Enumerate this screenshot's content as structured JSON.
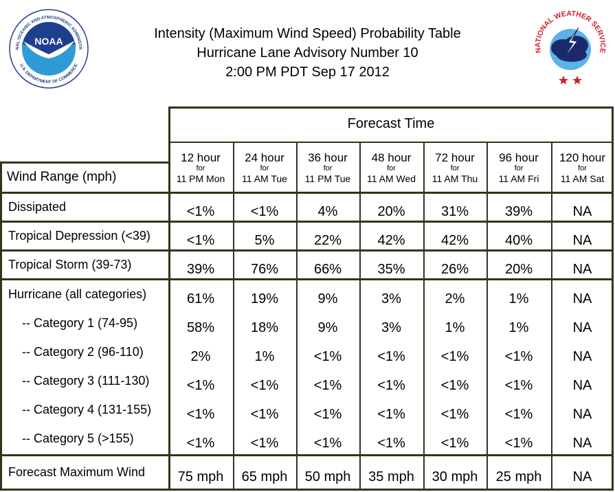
{
  "title": {
    "line1": "Intensity (Maximum Wind Speed) Probability Table",
    "line2": "Hurricane Lane Advisory Number 10",
    "line3": "2:00 PM PDT Sep 17 2012"
  },
  "logos": {
    "noaa_text": "NOAA",
    "noaa_ring": "NATIONAL OCEANIC AND ATMOSPHERIC ADMINISTRATION",
    "noaa_ring_bottom": "U.S. DEPARTMENT OF COMMERCE",
    "nws_ring": "NATIONAL WEATHER SERVICE"
  },
  "table": {
    "forecast_time_label": "Forecast Time",
    "wind_range_label": "Wind Range (mph)",
    "columns": [
      {
        "hours": "12 hour",
        "for": "for",
        "when": "11 PM Mon"
      },
      {
        "hours": "24 hour",
        "for": "for",
        "when": "11 AM Tue"
      },
      {
        "hours": "36 hour",
        "for": "for",
        "when": "11 PM Tue"
      },
      {
        "hours": "48 hour",
        "for": "for",
        "when": "11 AM Wed"
      },
      {
        "hours": "72 hour",
        "for": "for",
        "when": "11 AM Thu"
      },
      {
        "hours": "96 hour",
        "for": "for",
        "when": "11 AM Fri"
      },
      {
        "hours": "120 hour",
        "for": "for",
        "when": "11 AM Sat"
      }
    ],
    "rows": [
      {
        "label": "Dissipated",
        "values": [
          "<1%",
          "<1%",
          "4%",
          "20%",
          "31%",
          "39%",
          "NA"
        ]
      },
      {
        "label": "Tropical Depression (<39)",
        "values": [
          "<1%",
          "5%",
          "22%",
          "42%",
          "42%",
          "40%",
          "NA"
        ]
      },
      {
        "label": "Tropical Storm (39-73)",
        "values": [
          "39%",
          "76%",
          "66%",
          "35%",
          "26%",
          "20%",
          "NA"
        ]
      },
      {
        "label": "Hurricane (all categories)",
        "values": [
          "61%",
          "19%",
          "9%",
          "3%",
          "2%",
          "1%",
          "NA"
        ]
      },
      {
        "label": "-- Category 1 (74-95)",
        "values": [
          "58%",
          "18%",
          "9%",
          "3%",
          "1%",
          "1%",
          "NA"
        ]
      },
      {
        "label": "-- Category 2 (96-110)",
        "values": [
          "2%",
          "1%",
          "<1%",
          "<1%",
          "<1%",
          "<1%",
          "NA"
        ]
      },
      {
        "label": "-- Category 3 (111-130)",
        "values": [
          "<1%",
          "<1%",
          "<1%",
          "<1%",
          "<1%",
          "<1%",
          "NA"
        ]
      },
      {
        "label": "-- Category 4 (131-155)",
        "values": [
          "<1%",
          "<1%",
          "<1%",
          "<1%",
          "<1%",
          "<1%",
          "NA"
        ]
      },
      {
        "label": "-- Category 5 (>155)",
        "values": [
          "<1%",
          "<1%",
          "<1%",
          "<1%",
          "<1%",
          "<1%",
          "NA"
        ]
      },
      {
        "label": "Forecast Maximum Wind",
        "values": [
          "75 mph",
          "65 mph",
          "50 mph",
          "35 mph",
          "30 mph",
          "25 mph",
          "NA"
        ]
      }
    ]
  },
  "colors": {
    "border": "#33331a",
    "noaa_blue_dark": "#1d3f8c",
    "noaa_blue_light": "#2e9bd6",
    "nws_red": "#d0202a",
    "nws_navy": "#1c2a6b",
    "nws_sky": "#5bb3e6"
  }
}
